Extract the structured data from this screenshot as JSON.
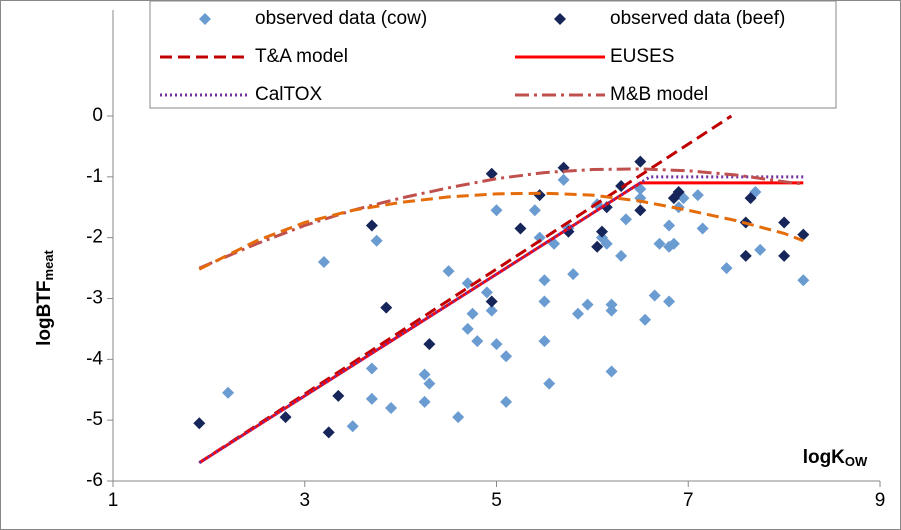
{
  "chart_data": {
    "type": "scatter",
    "xlabel": "logK",
    "xlabel_sub": "OW",
    "ylabel": "logBTF",
    "ylabel_sub": "meat",
    "xlim": [
      1,
      9
    ],
    "xticks": [
      1,
      3,
      5,
      7,
      9
    ],
    "ylim": [
      -6,
      0
    ],
    "yticks": [
      -6,
      -5,
      -4,
      -3,
      -2,
      -1,
      0
    ],
    "grid": false,
    "series": [
      {
        "name": "observed data (cow)",
        "kind": "scatter",
        "color": "#6a9bd1",
        "x": [
          2.2,
          3.2,
          3.7,
          3.7,
          3.75,
          3.9,
          3.5,
          4.25,
          4.25,
          4.3,
          4.5,
          4.6,
          4.7,
          4.7,
          4.8,
          4.75,
          4.9,
          4.95,
          5.0,
          5.0,
          5.1,
          5.1,
          5.4,
          5.45,
          5.5,
          5.5,
          5.5,
          5.55,
          5.6,
          5.7,
          5.75,
          5.8,
          5.85,
          5.95,
          6.05,
          6.1,
          6.15,
          6.2,
          6.2,
          6.2,
          6.3,
          6.35,
          6.5,
          6.5,
          6.55,
          6.65,
          6.7,
          6.8,
          6.8,
          6.8,
          6.85,
          6.9,
          6.95,
          7.1,
          7.15,
          7.4,
          7.7,
          7.75,
          8.2,
          5.75
        ],
        "values": [
          -4.55,
          -2.4,
          -4.15,
          -4.65,
          -2.05,
          -4.8,
          -5.1,
          -4.25,
          -4.7,
          -4.4,
          -2.55,
          -4.95,
          -2.75,
          -3.5,
          -3.7,
          -3.25,
          -2.9,
          -3.2,
          -1.55,
          -3.75,
          -3.95,
          -4.7,
          -1.55,
          -2.0,
          -2.7,
          -3.05,
          -3.7,
          -4.4,
          -2.1,
          -1.05,
          -1.85,
          -2.6,
          -3.25,
          -3.1,
          -1.45,
          -2.0,
          -2.1,
          -3.1,
          -3.2,
          -4.2,
          -2.3,
          -1.7,
          -1.35,
          -1.2,
          -3.35,
          -2.95,
          -2.1,
          -3.05,
          -2.15,
          -1.8,
          -2.1,
          -1.5,
          -1.35,
          -1.3,
          -1.85,
          -2.5,
          -1.25,
          -2.2,
          -2.7,
          -1.9
        ]
      },
      {
        "name": "observed data (beef)",
        "kind": "scatter",
        "color": "#17265a",
        "x": [
          1.9,
          2.8,
          3.25,
          3.35,
          3.7,
          3.85,
          4.3,
          4.95,
          4.95,
          5.25,
          5.7,
          5.75,
          6.05,
          6.1,
          6.15,
          6.5,
          6.5,
          6.85,
          6.9,
          7.6,
          7.6,
          7.65,
          8.0,
          8.0,
          8.2,
          6.3,
          5.45
        ],
        "values": [
          -5.05,
          -4.95,
          -5.2,
          -4.6,
          -1.8,
          -3.15,
          -3.75,
          -3.05,
          -0.95,
          -1.85,
          -0.85,
          -1.9,
          -2.15,
          -1.9,
          -1.5,
          -0.75,
          -1.55,
          -1.35,
          -1.25,
          -1.75,
          -2.3,
          -1.35,
          -1.75,
          -2.3,
          -1.95,
          -1.15,
          -1.3
        ]
      },
      {
        "name": "T&A model",
        "kind": "line",
        "color": "#c00000",
        "dash": "12,6",
        "x": [
          1.9,
          7.45
        ],
        "values": [
          -5.7,
          0
        ]
      },
      {
        "name": "EUSES",
        "kind": "line",
        "color": "#ff0000",
        "dash": "none",
        "x": [
          1.9,
          6.5,
          8.2
        ],
        "values": [
          -5.7,
          -1.1,
          -1.1
        ]
      },
      {
        "name": "CalTOX",
        "kind": "line",
        "color": "#7030a0",
        "dash": "2,3",
        "x": [
          1.9,
          6.6,
          8.2
        ],
        "values": [
          -5.7,
          -1.0,
          -1.0
        ]
      },
      {
        "name": "M&B model",
        "kind": "line",
        "color": "#c0504d",
        "dash": "14,5,3,5",
        "x": [
          1.9,
          2.5,
          3,
          3.5,
          4,
          4.5,
          5,
          5.5,
          6,
          6.5,
          7,
          7.5,
          8,
          8.2
        ],
        "values": [
          -2.5,
          -2.1,
          -1.8,
          -1.55,
          -1.35,
          -1.18,
          -1.03,
          -0.93,
          -0.88,
          -0.87,
          -0.9,
          -0.97,
          -1.08,
          -1.12
        ]
      },
      {
        "kind": "line",
        "color": "#e46c0a",
        "dash": "12,6",
        "x": [
          1.9,
          2.5,
          3,
          3.5,
          4,
          4.5,
          5,
          5.5,
          6,
          6.5,
          7,
          7.5,
          8,
          8.2
        ],
        "values": [
          -2.52,
          -2.05,
          -1.75,
          -1.55,
          -1.42,
          -1.33,
          -1.28,
          -1.27,
          -1.3,
          -1.4,
          -1.55,
          -1.72,
          -1.93,
          -2.05
        ]
      }
    ]
  }
}
